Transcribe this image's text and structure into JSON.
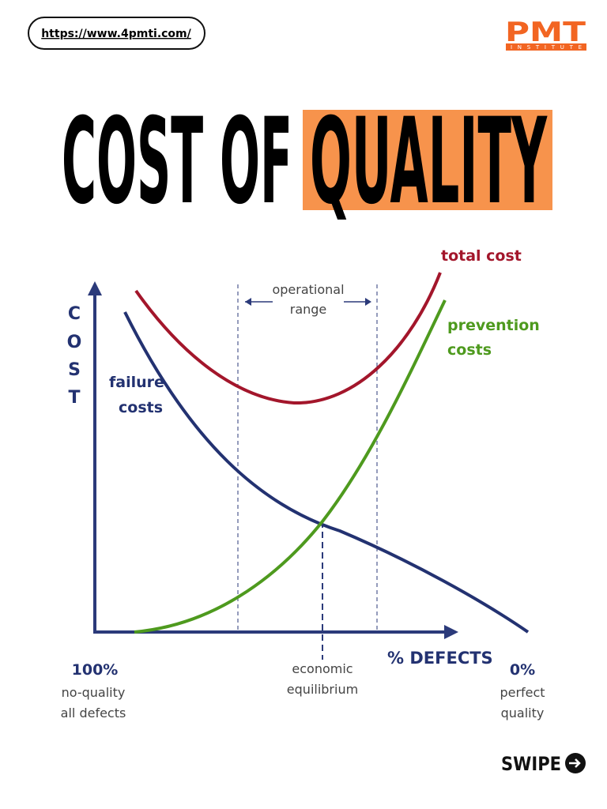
{
  "header": {
    "url": "https://www.4pmti.com/",
    "logo": "PMT",
    "logo_sub": "INSTITUTE"
  },
  "title": {
    "part1": "COST OF",
    "part2": "QUALITY"
  },
  "diagram": {
    "y_axis_letters": [
      "C",
      "O",
      "S",
      "T"
    ],
    "x_axis_label": "% DEFECTS",
    "total_cost": "total cost",
    "operational_range": [
      "operational",
      "range"
    ],
    "prevention_costs": [
      "prevention",
      "costs"
    ],
    "failure_costs": [
      "failure",
      "costs"
    ],
    "left_end": {
      "value": "100%",
      "lines": [
        "no-quality",
        "all defects"
      ]
    },
    "middle": [
      "economic",
      "equilibrium"
    ],
    "right_end": {
      "value": "0%",
      "lines": [
        "perfect",
        "quality"
      ]
    }
  },
  "footer": {
    "swipe": "SWIPE"
  }
}
